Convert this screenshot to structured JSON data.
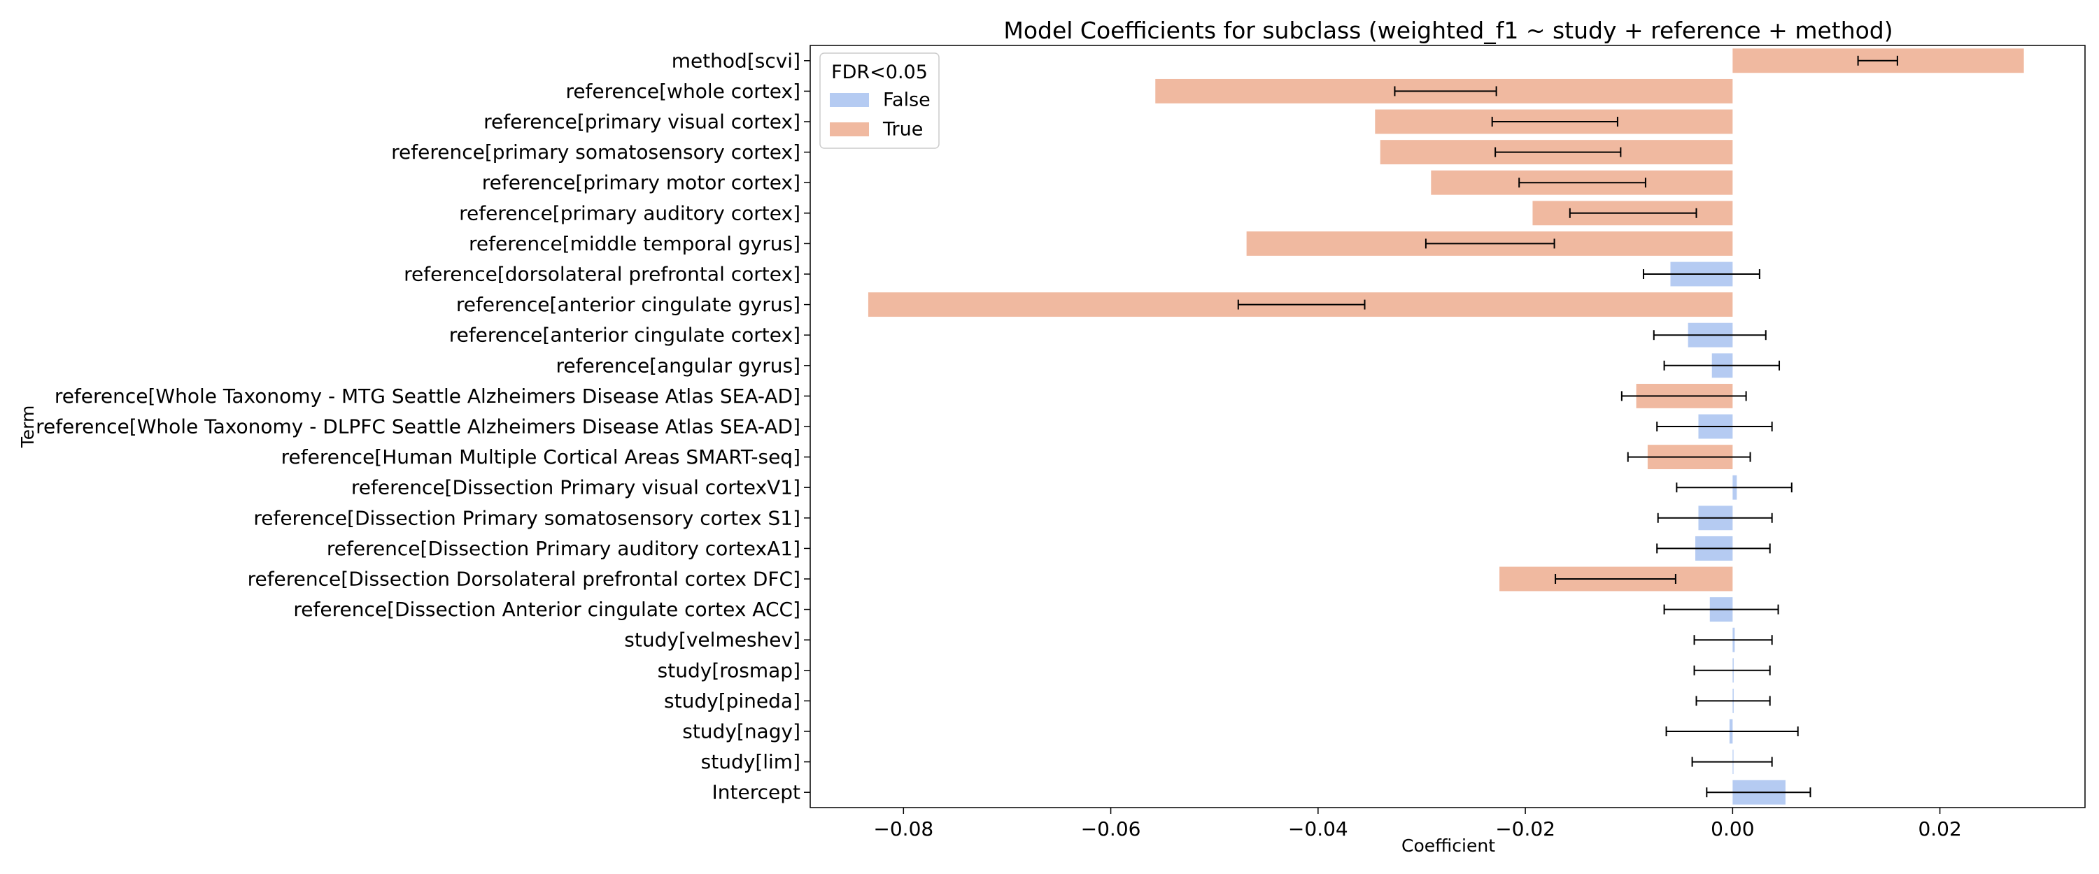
{
  "chart_data": {
    "type": "bar",
    "orientation": "horizontal",
    "title": "Model Coefficients for subclass (weighted_f1 ~ study + reference + method)",
    "xlabel": "Coefficient",
    "ylabel": "Term",
    "xlim": [
      -0.089,
      0.034
    ],
    "xticks": [
      -0.08,
      -0.06,
      -0.04,
      -0.02,
      0.0,
      0.02
    ],
    "xtick_labels": [
      "−0.08",
      "−0.06",
      "−0.04",
      "−0.02",
      "0.00",
      "0.02"
    ],
    "grid": false,
    "legend": {
      "title": "FDR<0.05",
      "placement": "top-left",
      "entries": [
        {
          "label": "False",
          "color": "#b5cbf2"
        },
        {
          "label": "True",
          "color": "#f0b9a0"
        }
      ]
    },
    "colors": {
      "False": "#b5cbf2",
      "True": "#f0b9a0"
    },
    "bars": [
      {
        "term": "method[scvi]",
        "value": 0.0281,
        "ci": [
          0.0121,
          0.0159
        ],
        "fdr": "True"
      },
      {
        "term": "reference[whole cortex]",
        "value": -0.0557,
        "ci": [
          -0.0326,
          -0.0228
        ],
        "fdr": "True"
      },
      {
        "term": "reference[primary visual cortex]",
        "value": -0.0345,
        "ci": [
          -0.0232,
          -0.0111
        ],
        "fdr": "True"
      },
      {
        "term": "reference[primary somatosensory cortex]",
        "value": -0.034,
        "ci": [
          -0.0229,
          -0.0108
        ],
        "fdr": "True"
      },
      {
        "term": "reference[primary motor cortex]",
        "value": -0.0291,
        "ci": [
          -0.0206,
          -0.0084
        ],
        "fdr": "True"
      },
      {
        "term": "reference[primary auditory cortex]",
        "value": -0.0193,
        "ci": [
          -0.0157,
          -0.0035
        ],
        "fdr": "True"
      },
      {
        "term": "reference[middle temporal gyrus]",
        "value": -0.0469,
        "ci": [
          -0.0296,
          -0.0172
        ],
        "fdr": "True"
      },
      {
        "term": "reference[dorsolateral prefrontal cortex]",
        "value": -0.006,
        "ci": [
          -0.0086,
          0.0026
        ],
        "fdr": "False"
      },
      {
        "term": "reference[anterior cingulate gyrus]",
        "value": -0.0834,
        "ci": [
          -0.0477,
          -0.0355
        ],
        "fdr": "True"
      },
      {
        "term": "reference[anterior cingulate cortex]",
        "value": -0.0043,
        "ci": [
          -0.0076,
          0.0032
        ],
        "fdr": "False"
      },
      {
        "term": "reference[angular gyrus]",
        "value": -0.002,
        "ci": [
          -0.0066,
          0.0045
        ],
        "fdr": "False"
      },
      {
        "term": "reference[Whole Taxonomy - MTG Seattle Alzheimers Disease Atlas SEA-AD]",
        "value": -0.0093,
        "ci": [
          -0.0107,
          0.0013
        ],
        "fdr": "True"
      },
      {
        "term": "reference[Whole Taxonomy - DLPFC Seattle Alzheimers Disease Atlas SEA-AD]",
        "value": -0.0033,
        "ci": [
          -0.0073,
          0.0038
        ],
        "fdr": "False"
      },
      {
        "term": "reference[Human Multiple Cortical Areas SMART-seq]",
        "value": -0.0082,
        "ci": [
          -0.0101,
          0.0017
        ],
        "fdr": "True"
      },
      {
        "term": "reference[Dissection Primary visual cortexV1]",
        "value": 0.0004,
        "ci": [
          -0.0054,
          0.0057
        ],
        "fdr": "False"
      },
      {
        "term": "reference[Dissection Primary somatosensory cortex S1]",
        "value": -0.0033,
        "ci": [
          -0.0072,
          0.0038
        ],
        "fdr": "False"
      },
      {
        "term": "reference[Dissection Primary auditory cortexA1]",
        "value": -0.0036,
        "ci": [
          -0.0073,
          0.0036
        ],
        "fdr": "False"
      },
      {
        "term": "reference[Dissection Dorsolateral prefrontal cortex DFC]",
        "value": -0.0225,
        "ci": [
          -0.0171,
          -0.0055
        ],
        "fdr": "True"
      },
      {
        "term": "reference[Dissection Anterior cingulate cortex ACC]",
        "value": -0.0022,
        "ci": [
          -0.0066,
          0.0044
        ],
        "fdr": "False"
      },
      {
        "term": "study[velmeshev]",
        "value": 0.0002,
        "ci": [
          -0.0037,
          0.0038
        ],
        "fdr": "False"
      },
      {
        "term": "study[rosmap]",
        "value": 0.0001,
        "ci": [
          -0.0037,
          0.0036
        ],
        "fdr": "False"
      },
      {
        "term": "study[pineda]",
        "value": 0.0001,
        "ci": [
          -0.0035,
          0.0036
        ],
        "fdr": "False"
      },
      {
        "term": "study[nagy]",
        "value": -0.0003,
        "ci": [
          -0.0064,
          0.0063
        ],
        "fdr": "False"
      },
      {
        "term": "study[lim]",
        "value": 0.0,
        "ci": [
          -0.0039,
          0.0038
        ],
        "fdr": "False"
      },
      {
        "term": "Intercept",
        "value": 0.0051,
        "ci": [
          -0.0025,
          0.0075
        ],
        "fdr": "False"
      }
    ]
  }
}
